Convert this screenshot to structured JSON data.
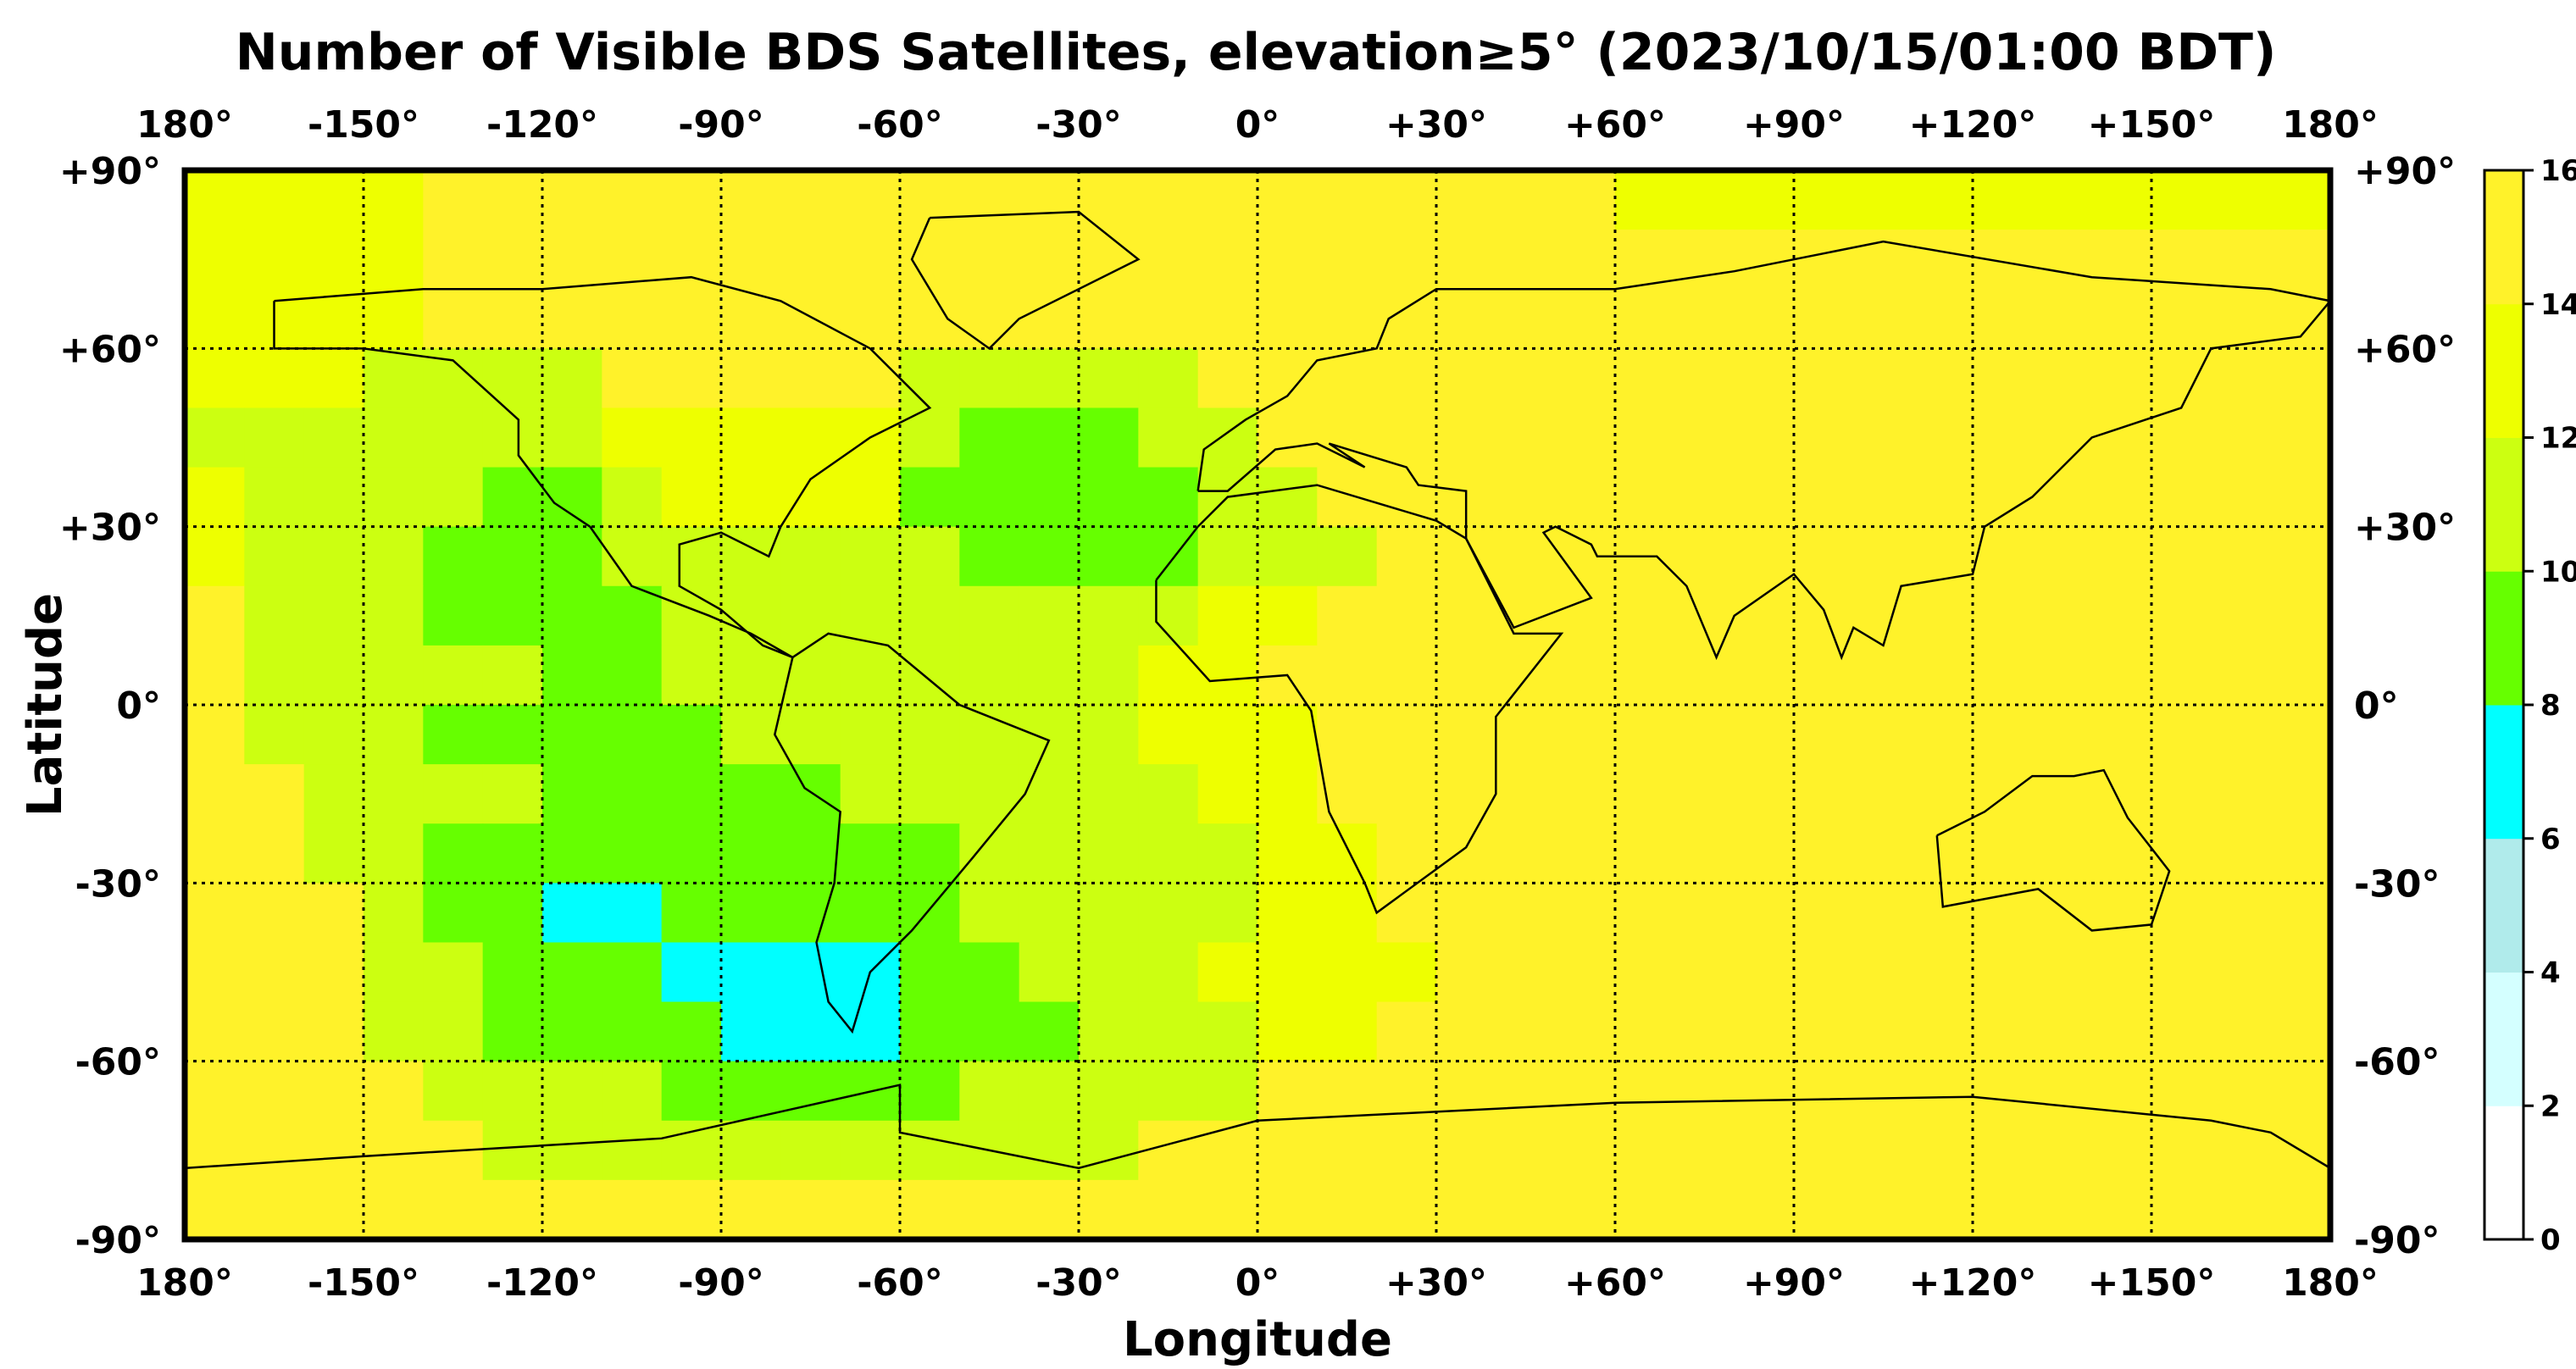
{
  "title": "Number of Visible BDS Satellites, elevation≥5° (2023/10/15/01:00 BDT)",
  "chart_data": {
    "type": "heatmap",
    "title": "Number of Visible BDS Satellites, elevation≥5° (2023/10/15/01:00 BDT)",
    "xlabel": "Longitude",
    "ylabel": "Latitude",
    "xlim": [
      -180,
      180
    ],
    "ylim": [
      -90,
      90
    ],
    "grid": true,
    "x_ticks": [
      -180,
      -150,
      -120,
      -90,
      -60,
      -30,
      0,
      30,
      60,
      90,
      120,
      150,
      180
    ],
    "y_ticks": [
      90,
      60,
      30,
      0,
      -30,
      -60,
      -90
    ],
    "x_tick_labels": [
      "180°",
      "-150°",
      "-120°",
      "-90°",
      "-60°",
      "-30°",
      "0°",
      "+30°",
      "+60°",
      "+90°",
      "+120°",
      "+150°",
      "180°"
    ],
    "y_tick_labels": [
      "+90°",
      "+60°",
      "+30°",
      "0°",
      "-30°",
      "-60°",
      "-90°"
    ],
    "colorbar": {
      "ticks": [
        "16",
        "14",
        "12",
        "10",
        "8",
        "6",
        "4",
        "2",
        "0"
      ],
      "levels": [
        0,
        2,
        4,
        6,
        8,
        10,
        12,
        14,
        16
      ],
      "colors": [
        "#ffffff",
        "#d4ffff",
        "#b0ebeb",
        "#00ffff",
        "#66ff00",
        "#ccff11",
        "#eeff00",
        "#fff22a"
      ],
      "placement": "right"
    },
    "grid_resolution_deg": 10,
    "field_level_index_rows_north_to_south": [
      "666677777777777777777777666666666666",
      "666677777777777777777777777777777777",
      "666677777777777777777777777777777777",
      "666555577777555557777777777777777777",
      "555555566666544455777777777777777777",
      "655554456666444445577777777777777777",
      "655544455555544445557777777777777777",
      "755544445555555556677777777777777777",
      "755555445555555566777777777777777777",
      "755544444555555566677777777777777777",
      "775555444445555556677777777777777777",
      "775544444444455555667777777777777777",
      "777544334444455555667777777777777777",
      "777554443333445556666777777777777777",
      "777554444333444555667777777777777777",
      "777755554444455555777777777777777777",
      "777775555555555577777777777777777777",
      "777777777777777777777777777777777777"
    ]
  }
}
